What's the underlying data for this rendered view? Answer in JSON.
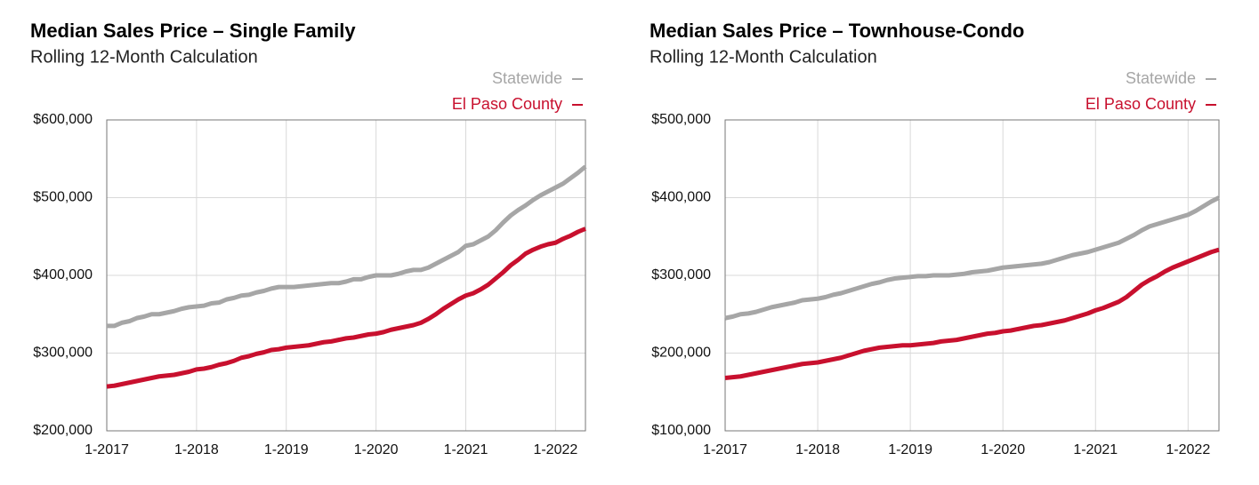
{
  "chart_data": [
    {
      "type": "line",
      "title": "Median Sales Price – Single Family",
      "subtitle": "Rolling 12-Month Calculation",
      "categories": [
        "1-2017",
        null,
        null,
        null,
        null,
        null,
        null,
        null,
        null,
        null,
        null,
        null,
        "1-2018",
        null,
        null,
        null,
        null,
        null,
        null,
        null,
        null,
        null,
        null,
        null,
        "1-2019",
        null,
        null,
        null,
        null,
        null,
        null,
        null,
        null,
        null,
        null,
        null,
        "1-2020",
        null,
        null,
        null,
        null,
        null,
        null,
        null,
        null,
        null,
        null,
        null,
        "1-2021",
        null,
        null,
        null,
        null,
        null,
        null,
        null,
        null,
        null,
        null,
        null,
        "1-2022",
        null,
        null,
        null,
        null
      ],
      "series": [
        {
          "name": "Statewide",
          "color": "#a6a6a6",
          "values": [
            335000,
            335000,
            339000,
            341000,
            345000,
            347000,
            350000,
            350000,
            352000,
            354000,
            357000,
            359000,
            360000,
            361000,
            364000,
            365000,
            369000,
            371000,
            374000,
            375000,
            378000,
            380000,
            383000,
            385000,
            385000,
            385000,
            386000,
            387000,
            388000,
            389000,
            390000,
            390000,
            392000,
            395000,
            395000,
            398000,
            400000,
            400000,
            400000,
            402000,
            405000,
            407000,
            407000,
            410000,
            415000,
            420000,
            425000,
            430000,
            438000,
            440000,
            445000,
            450000,
            458000,
            468000,
            477000,
            484000,
            490000,
            497000,
            503000,
            508000,
            513000,
            518000,
            525000,
            532000,
            540000
          ]
        },
        {
          "name": "El Paso County",
          "color": "#c8102e",
          "values": [
            257000,
            258000,
            260000,
            262000,
            264000,
            266000,
            268000,
            270000,
            271000,
            272000,
            274000,
            276000,
            279000,
            280000,
            282000,
            285000,
            287000,
            290000,
            294000,
            296000,
            299000,
            301000,
            304000,
            305000,
            307000,
            308000,
            309000,
            310000,
            312000,
            314000,
            315000,
            317000,
            319000,
            320000,
            322000,
            324000,
            325000,
            327000,
            330000,
            332000,
            334000,
            336000,
            339000,
            344000,
            350000,
            357000,
            363000,
            369000,
            374000,
            377000,
            382000,
            388000,
            396000,
            404000,
            413000,
            420000,
            428000,
            433000,
            437000,
            440000,
            442000,
            447000,
            451000,
            456000,
            460000
          ]
        }
      ],
      "ylim": [
        200000,
        600000
      ],
      "yticks": [
        {
          "value": 200000,
          "label": "$200,000"
        },
        {
          "value": 300000,
          "label": "$300,000"
        },
        {
          "value": 400000,
          "label": "$400,000"
        },
        {
          "value": 500000,
          "label": "$500,000"
        },
        {
          "value": 600000,
          "label": "$600,000"
        }
      ],
      "grid": true
    },
    {
      "type": "line",
      "title": "Median Sales Price – Townhouse-Condo",
      "subtitle": "Rolling 12-Month Calculation",
      "categories": [
        "1-2017",
        null,
        null,
        null,
        null,
        null,
        null,
        null,
        null,
        null,
        null,
        null,
        "1-2018",
        null,
        null,
        null,
        null,
        null,
        null,
        null,
        null,
        null,
        null,
        null,
        "1-2019",
        null,
        null,
        null,
        null,
        null,
        null,
        null,
        null,
        null,
        null,
        null,
        "1-2020",
        null,
        null,
        null,
        null,
        null,
        null,
        null,
        null,
        null,
        null,
        null,
        "1-2021",
        null,
        null,
        null,
        null,
        null,
        null,
        null,
        null,
        null,
        null,
        null,
        "1-2022",
        null,
        null,
        null,
        null
      ],
      "series": [
        {
          "name": "Statewide",
          "color": "#a6a6a6",
          "values": [
            245000,
            247000,
            250000,
            251000,
            253000,
            256000,
            259000,
            261000,
            263000,
            265000,
            268000,
            269000,
            270000,
            272000,
            275000,
            277000,
            280000,
            283000,
            286000,
            289000,
            291000,
            294000,
            296000,
            297000,
            298000,
            299000,
            299000,
            300000,
            300000,
            300000,
            301000,
            302000,
            304000,
            305000,
            306000,
            308000,
            310000,
            311000,
            312000,
            313000,
            314000,
            315000,
            317000,
            320000,
            323000,
            326000,
            328000,
            330000,
            333000,
            336000,
            339000,
            342000,
            347000,
            352000,
            358000,
            363000,
            366000,
            369000,
            372000,
            375000,
            378000,
            383000,
            389000,
            395000,
            400000
          ]
        },
        {
          "name": "El Paso County",
          "color": "#c8102e",
          "values": [
            168000,
            169000,
            170000,
            172000,
            174000,
            176000,
            178000,
            180000,
            182000,
            184000,
            186000,
            187000,
            188000,
            190000,
            192000,
            194000,
            197000,
            200000,
            203000,
            205000,
            207000,
            208000,
            209000,
            210000,
            210000,
            211000,
            212000,
            213000,
            215000,
            216000,
            217000,
            219000,
            221000,
            223000,
            225000,
            226000,
            228000,
            229000,
            231000,
            233000,
            235000,
            236000,
            238000,
            240000,
            242000,
            245000,
            248000,
            251000,
            255000,
            258000,
            262000,
            266000,
            272000,
            280000,
            288000,
            294000,
            299000,
            305000,
            310000,
            314000,
            318000,
            322000,
            326000,
            330000,
            333000
          ]
        }
      ],
      "ylim": [
        100000,
        500000
      ],
      "yticks": [
        {
          "value": 100000,
          "label": "$100,000"
        },
        {
          "value": 200000,
          "label": "$200,000"
        },
        {
          "value": 300000,
          "label": "$300,000"
        },
        {
          "value": 400000,
          "label": "$400,000"
        },
        {
          "value": 500000,
          "label": "$500,000"
        }
      ],
      "grid": true
    }
  ]
}
